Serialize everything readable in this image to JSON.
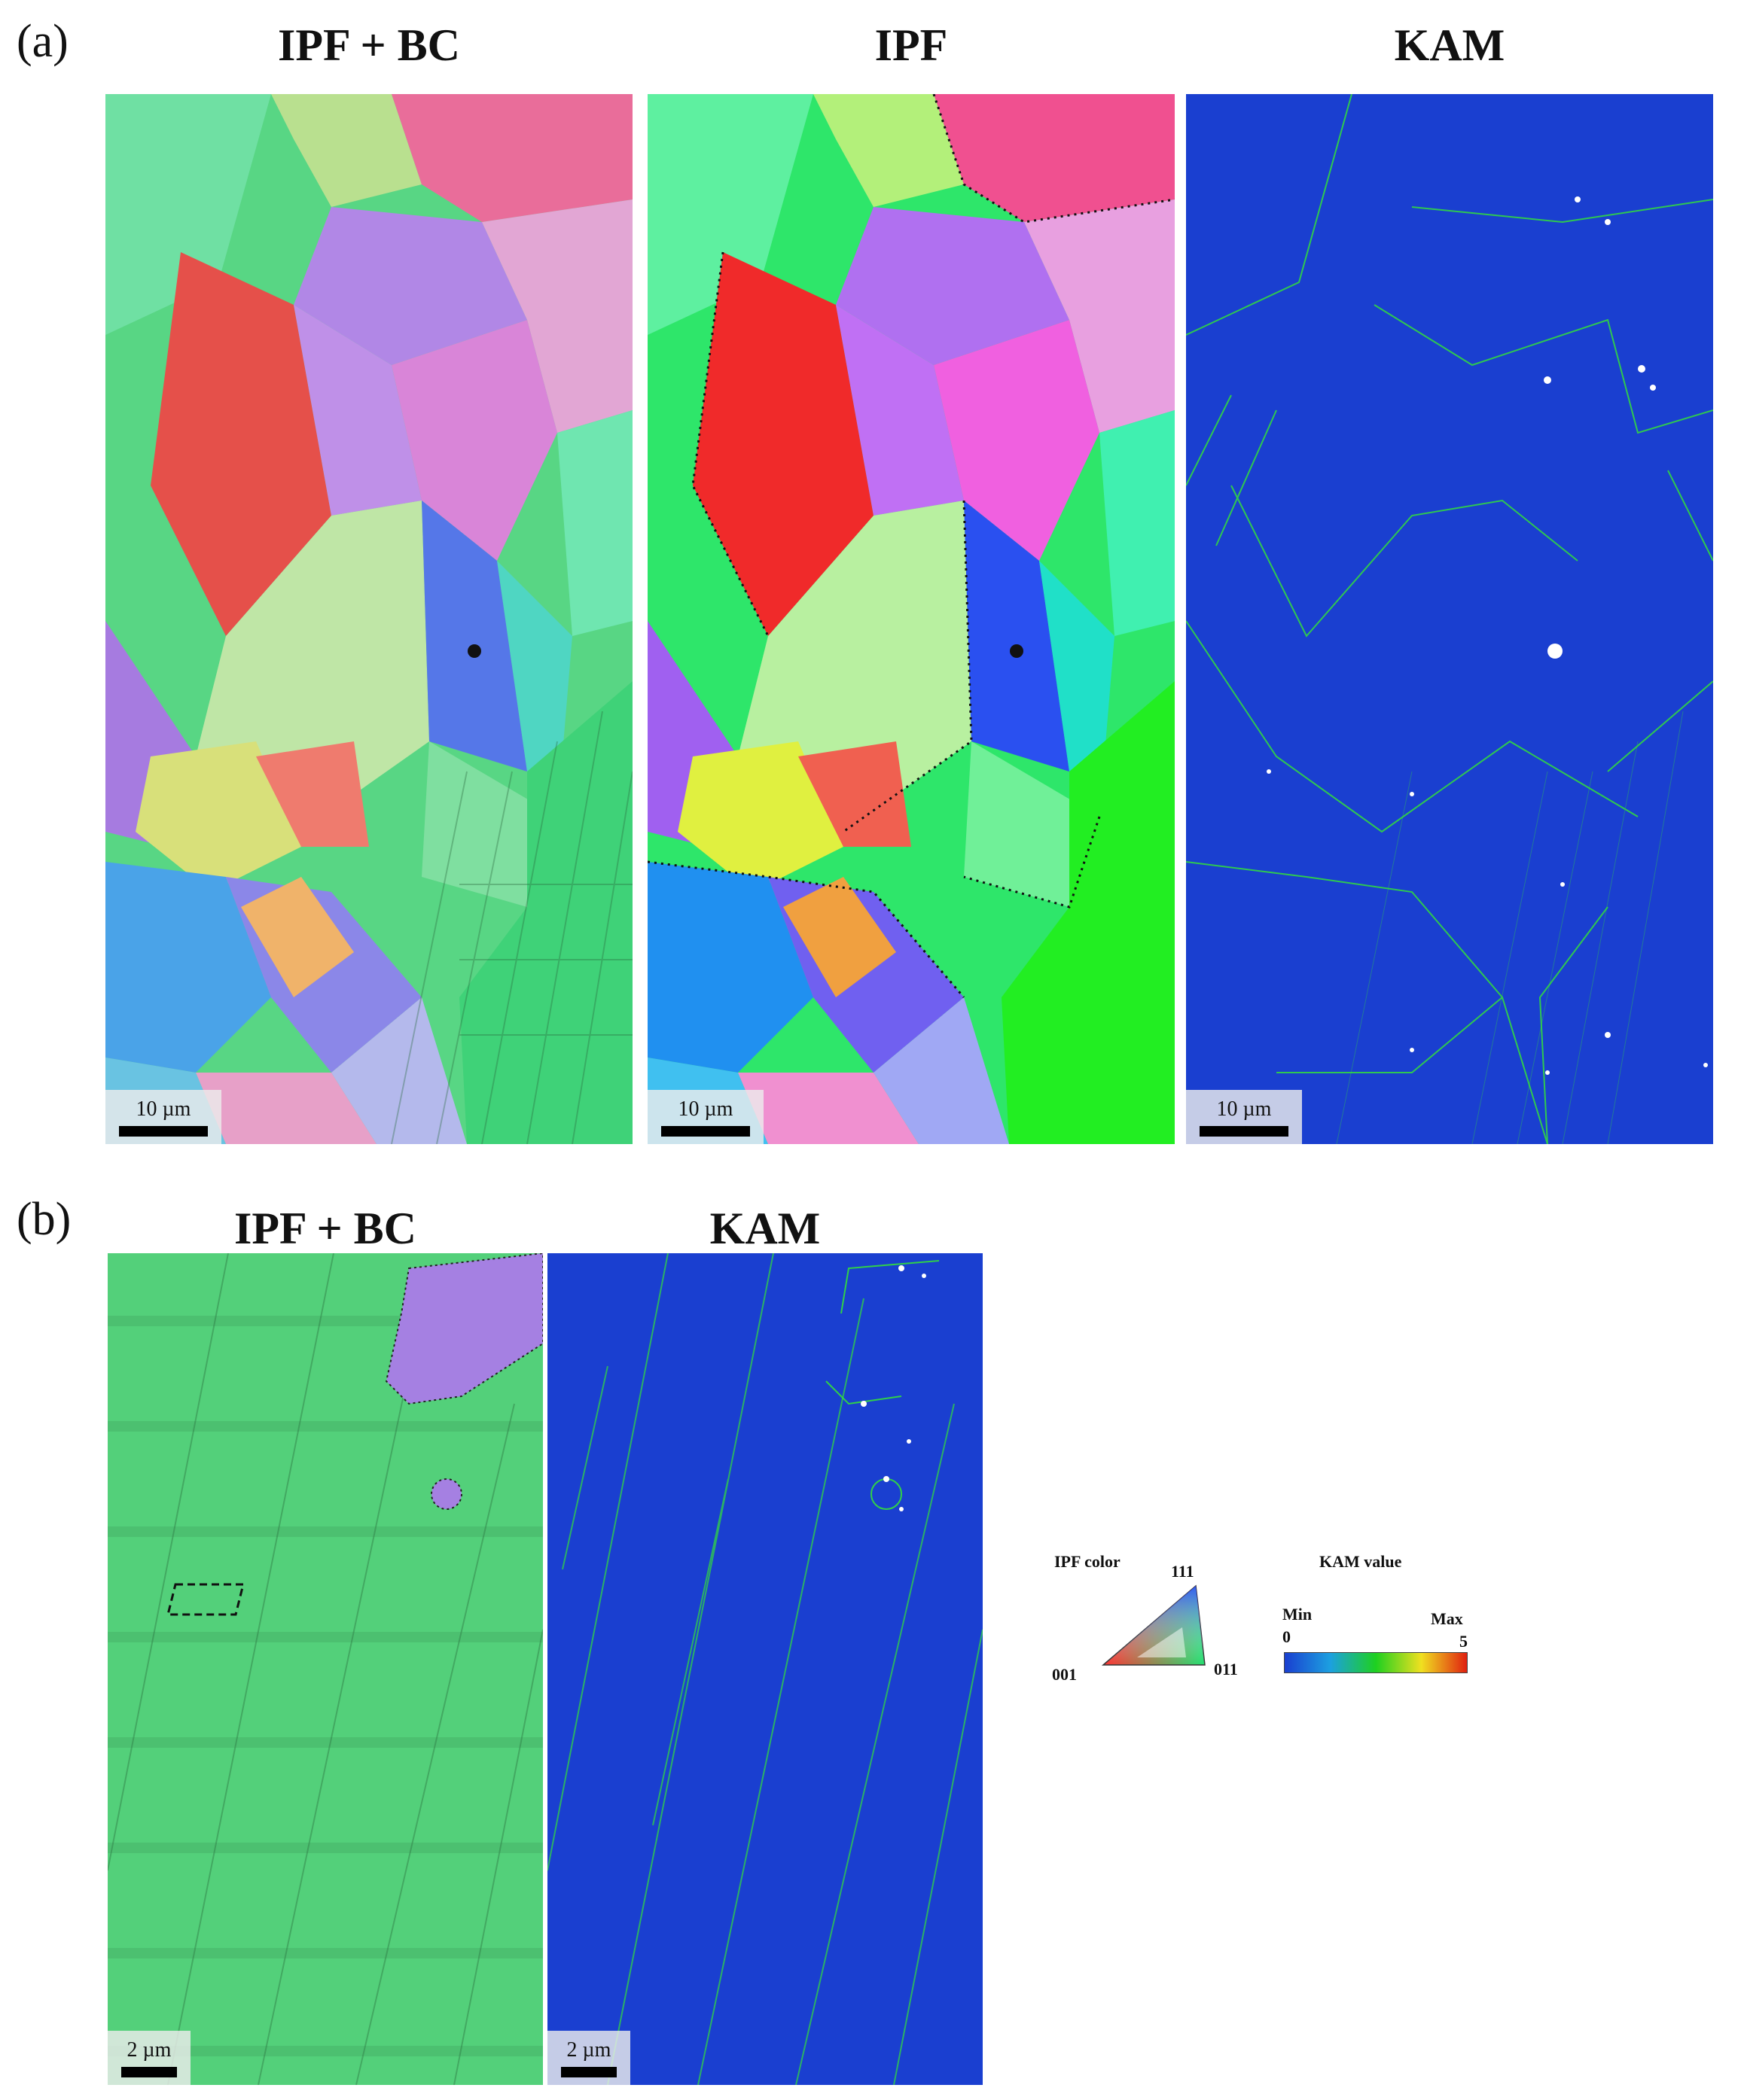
{
  "panels": {
    "a": {
      "letter": "(a)",
      "titles": [
        "IPF + BC",
        "IPF",
        "KAM"
      ],
      "scale_label": "10 µm"
    },
    "b": {
      "letter": "(b)",
      "titles": [
        "IPF + BC",
        "KAM"
      ],
      "scale_label": "2 µm"
    }
  },
  "legend": {
    "ipf_title": "IPF color",
    "ipf_corner_111": "111",
    "ipf_corner_001": "001",
    "ipf_corner_011": "011",
    "kam_title": "KAM value",
    "kam_min_label": "Min",
    "kam_max_label": "Max",
    "kam_min_value": "0",
    "kam_max_value": "5",
    "kam_colors": [
      "#1a3fd0",
      "#1ca0e0",
      "#1ed020",
      "#f0e020",
      "#e02010"
    ]
  },
  "colors": {
    "kam_background": "#1a3fd0",
    "kam_line": "#33e03a",
    "ipf_green": "#3ed873",
    "ipf_red": "#e8463f",
    "ipf_violet": "#a77fe6"
  }
}
